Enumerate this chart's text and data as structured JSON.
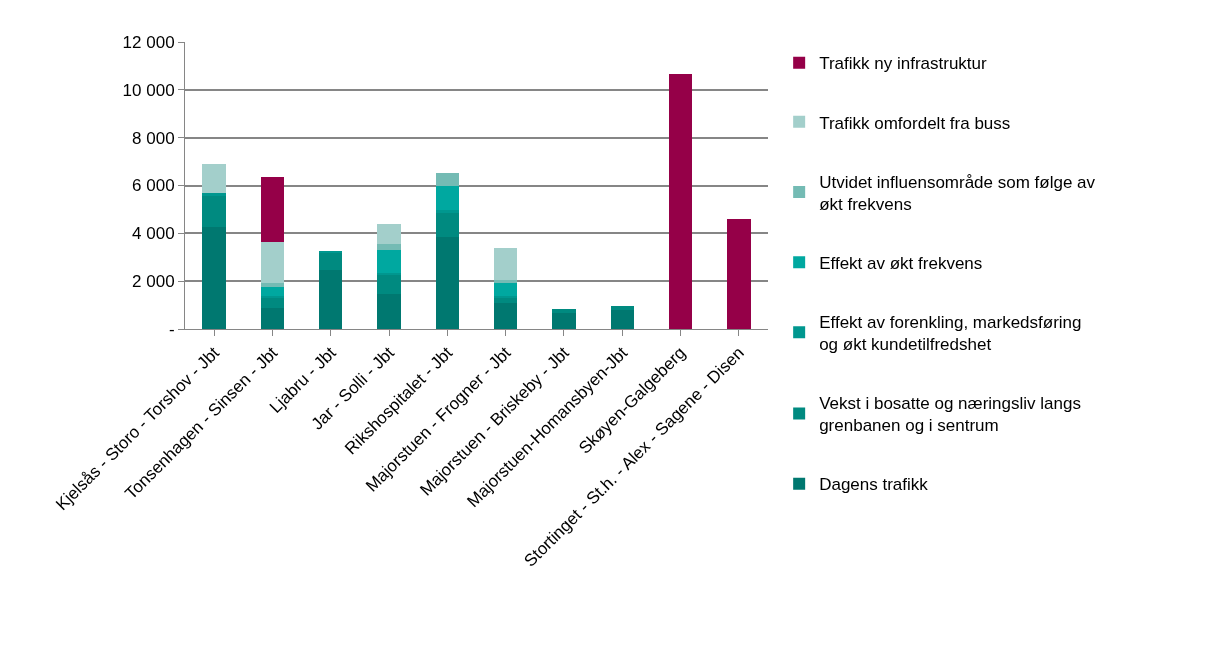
{
  "chart_data": {
    "type": "bar",
    "stacked": true,
    "categories": [
      "Kjelsås - Storo - Torshov - Jbt",
      "Tonsenhagen - Sinsen - Jbt",
      "Ljabru - Jbt",
      "Jar - Solli - Jbt",
      "Rikshospitalet - Jbt",
      "Majorstuen - Frogner - Jbt",
      "Majorstuen - Briskeby - Jbt",
      "Majorstuen-Homansbyen-Jbt",
      "Skøyen-Galgeberg",
      "Stortinget - St.h. - Alex - Sagene - Disen"
    ],
    "series": [
      {
        "name": "Dagens trafikk",
        "color": "#007870",
        "values": [
          4270,
          890,
          2460,
          1460,
          3850,
          1070,
          650,
          780,
          0,
          0
        ]
      },
      {
        "name": "Vekst i bosatte og næringsliv langs grenbanen og i sentrum",
        "color": "#008a80",
        "values": [
          1290,
          420,
          700,
          820,
          1000,
          240,
          180,
          180,
          0,
          0
        ]
      },
      {
        "name": "Effekt av forenkling, markedsføring og økt kundetilfredshet",
        "color": "#00978f",
        "values": [
          130,
          70,
          100,
          50,
          130,
          70,
          0,
          0,
          0,
          0
        ]
      },
      {
        "name": "Effekt av økt frekvens",
        "color": "#00a8a0",
        "values": [
          0,
          390,
          0,
          960,
          1000,
          560,
          0,
          0,
          0,
          0
        ]
      },
      {
        "name": "Utvidet influensområde som følge av økt frekvens",
        "color": "#74bbb4",
        "values": [
          0,
          170,
          0,
          250,
          540,
          110,
          0,
          0,
          0,
          0
        ]
      },
      {
        "name": "Trafikk omfordelt fra buss",
        "color": "#a3cfcb",
        "values": [
          1200,
          1700,
          0,
          860,
          0,
          1350,
          0,
          0,
          0,
          0
        ]
      },
      {
        "name": "Trafikk ny infrastruktur",
        "color": "#950048",
        "values": [
          0,
          2710,
          0,
          0,
          0,
          0,
          0,
          0,
          10670,
          4590
        ]
      }
    ],
    "ylim": [
      0,
      12000
    ],
    "yticks": [
      {
        "value": 0,
        "label": "-"
      },
      {
        "value": 2000,
        "label": "2 000"
      },
      {
        "value": 4000,
        "label": "4 000"
      },
      {
        "value": 6000,
        "label": "6 000"
      },
      {
        "value": 8000,
        "label": "8 000"
      },
      {
        "value": 10000,
        "label": "10 000"
      },
      {
        "value": 12000,
        "label": "12 000"
      }
    ],
    "grid": "y",
    "legend": "right"
  }
}
